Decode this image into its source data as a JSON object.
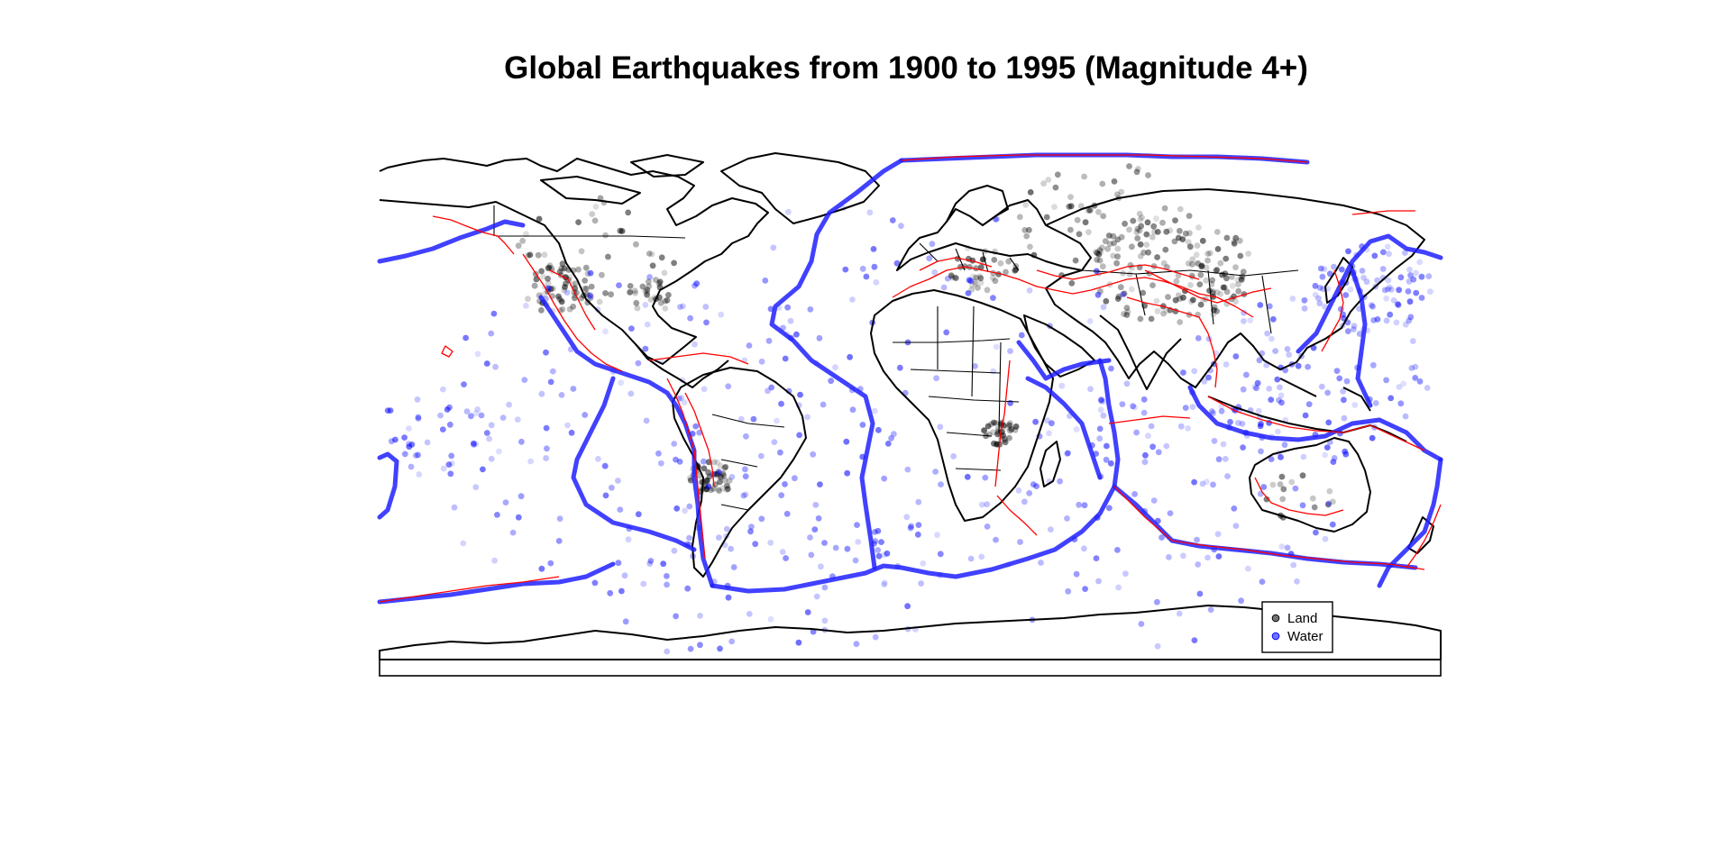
{
  "title": "Global Earthquakes from 1900 to 1995 (Magnitude 4+)",
  "legend": {
    "position": "bottom-right",
    "items": [
      {
        "label": "Land",
        "color": "#000000"
      },
      {
        "label": "Water",
        "color": "#0000ff"
      }
    ]
  },
  "map": {
    "projection": "equirectangular",
    "lon_range": [
      -180,
      180
    ],
    "lat_range": [
      -90,
      90
    ]
  },
  "colors": {
    "land_events": "#000000",
    "water_events": "#0000ff",
    "fault_lines": "#ff0000",
    "coastline": "#000000"
  }
}
